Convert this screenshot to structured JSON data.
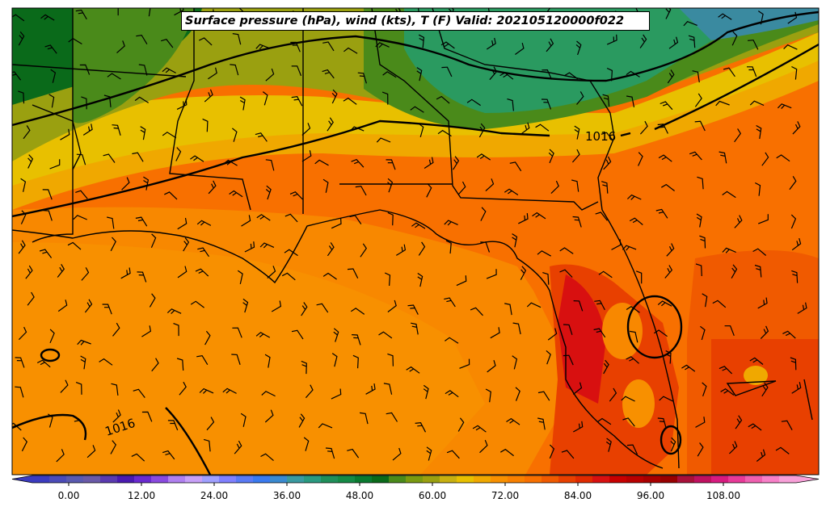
{
  "title": "Surface pressure (hPa), wind (kts), T (F) Valid: 202105120000f022",
  "isobar_labels": [
    "1016",
    "1016"
  ],
  "colorbar": {
    "ticks": [
      "0.00",
      "12.00",
      "24.00",
      "36.00",
      "48.00",
      "60.00",
      "72.00",
      "84.00",
      "96.00",
      "108.00"
    ],
    "colors": [
      "#3b3bbf",
      "#4b4bb8",
      "#5a5ab0",
      "#6a5aa8",
      "#5a3ab0",
      "#4a1ab0",
      "#6a2ad0",
      "#8a4ae0",
      "#b080f0",
      "#c8a0f8",
      "#a0a0ff",
      "#8080ff",
      "#5a7af5",
      "#3a7af0",
      "#3a8ad0",
      "#3a9aa0",
      "#2a9a80",
      "#1f8f5a",
      "#158a45",
      "#0a7a30",
      "#0a6a1a",
      "#4a8a1a",
      "#7a9a10",
      "#9aa010",
      "#c8b010",
      "#e8c000",
      "#f0a800",
      "#f89000",
      "#f88000",
      "#f87000",
      "#f05a00",
      "#e84000",
      "#e02a00",
      "#d81010",
      "#c80000",
      "#b80000",
      "#a80000",
      "#980000",
      "#a8103a",
      "#c01060",
      "#d81a80",
      "#e83a98",
      "#f060b0",
      "#f880c8",
      "#f8a0d8"
    ]
  }
}
